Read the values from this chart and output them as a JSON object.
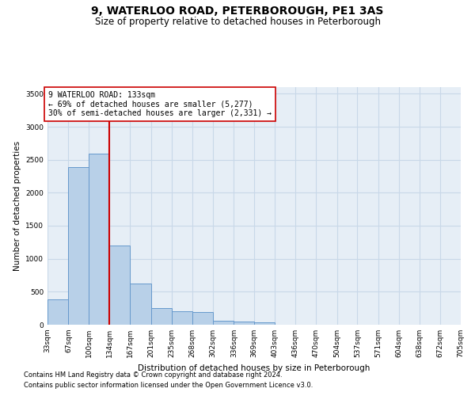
{
  "title": "9, WATERLOO ROAD, PETERBOROUGH, PE1 3AS",
  "subtitle": "Size of property relative to detached houses in Peterborough",
  "xlabel": "Distribution of detached houses by size in Peterborough",
  "ylabel": "Number of detached properties",
  "footnote1": "Contains HM Land Registry data © Crown copyright and database right 2024.",
  "footnote2": "Contains public sector information licensed under the Open Government Licence v3.0.",
  "annotation_line1": "9 WATERLOO ROAD: 133sqm",
  "annotation_line2": "← 69% of detached houses are smaller (5,277)",
  "annotation_line3": "30% of semi-detached houses are larger (2,331) →",
  "bar_color": "#b8d0e8",
  "bar_edge_color": "#6699cc",
  "vline_color": "#cc0000",
  "vline_x_index": 3,
  "bin_edges": [
    33,
    67,
    100,
    134,
    167,
    201,
    235,
    268,
    302,
    336,
    369,
    403,
    436,
    470,
    504,
    537,
    571,
    604,
    638,
    672,
    705
  ],
  "bar_heights": [
    390,
    2390,
    2590,
    1200,
    620,
    255,
    200,
    195,
    55,
    50,
    40,
    0,
    0,
    0,
    0,
    0,
    0,
    0,
    0,
    0
  ],
  "ylim": [
    0,
    3600
  ],
  "yticks": [
    0,
    500,
    1000,
    1500,
    2000,
    2500,
    3000,
    3500
  ],
  "bg_color": "#e6eef6",
  "grid_color": "#c8d8e8",
  "title_fontsize": 10,
  "subtitle_fontsize": 8.5,
  "annotation_fontsize": 7,
  "axis_label_fontsize": 7.5,
  "tick_fontsize": 6.5,
  "footnote_fontsize": 6
}
